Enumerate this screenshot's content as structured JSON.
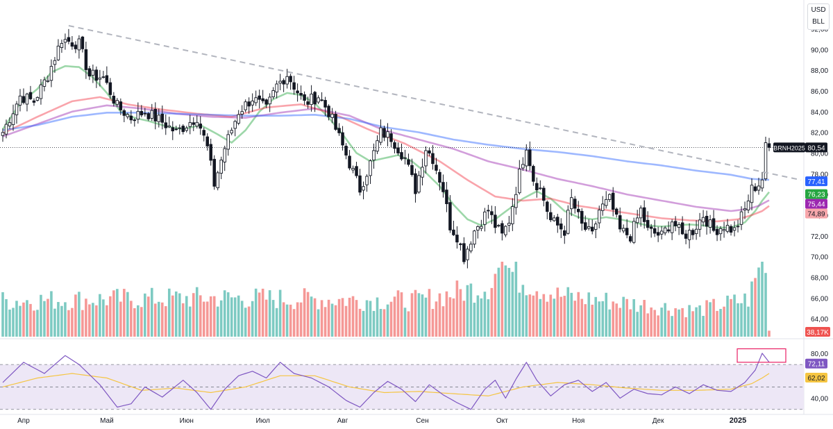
{
  "chart_data": [
    {
      "type": "candlestick",
      "panel": "price",
      "symbol": "BRNH2025",
      "currency": "USD",
      "unit": "BLL",
      "last_price_label": "80,54",
      "last_price": 80.54,
      "y_ticks": [
        "92,00",
        "90,00",
        "88,00",
        "86,00",
        "84,00",
        "82,00",
        "80,00",
        "78,00",
        "76,00",
        "74,00",
        "72,00",
        "70,00",
        "68,00",
        "66,00",
        "64,00"
      ],
      "ylim": [
        63,
        92.5
      ],
      "x_month_labels": [
        "Апр",
        "Май",
        "Июн",
        "Июл",
        "Авг",
        "Сен",
        "Окт",
        "Ноя",
        "Дек",
        "2025"
      ],
      "x_month_start_index": [
        6,
        30,
        53,
        75,
        98,
        121,
        144,
        166,
        189,
        212
      ],
      "bars_total": 222,
      "close_anchors": [
        [
          0,
          82.0
        ],
        [
          5,
          85.5
        ],
        [
          9,
          85.0
        ],
        [
          13,
          87.5
        ],
        [
          17,
          91.0
        ],
        [
          22,
          90.5
        ],
        [
          25,
          87.5
        ],
        [
          29,
          87.3
        ],
        [
          33,
          84.5
        ],
        [
          37,
          83.4
        ],
        [
          41,
          84.0
        ],
        [
          46,
          83.0
        ],
        [
          50,
          82.0
        ],
        [
          56,
          83.5
        ],
        [
          59,
          80.5
        ],
        [
          61,
          77.0
        ],
        [
          64,
          80.5
        ],
        [
          68,
          84.0
        ],
        [
          72,
          85.3
        ],
        [
          76,
          84.2
        ],
        [
          79,
          86.5
        ],
        [
          82,
          87.6
        ],
        [
          84,
          86.5
        ],
        [
          87,
          84.8
        ],
        [
          91,
          85.5
        ],
        [
          94,
          84.0
        ],
        [
          97,
          81.5
        ],
        [
          100,
          79.0
        ],
        [
          103,
          76.5
        ],
        [
          106,
          79.0
        ],
        [
          109,
          82.0
        ],
        [
          112,
          81.5
        ],
        [
          116,
          79.5
        ],
        [
          119,
          76.5
        ],
        [
          122,
          80.5
        ],
        [
          124,
          79.5
        ],
        [
          127,
          76.5
        ],
        [
          129,
          73.0
        ],
        [
          131,
          72.0
        ],
        [
          133,
          70.0
        ],
        [
          136,
          72.5
        ],
        [
          140,
          74.5
        ],
        [
          142,
          73.0
        ],
        [
          144,
          72.0
        ],
        [
          146,
          73.5
        ],
        [
          149,
          78.0
        ],
        [
          151,
          80.8
        ],
        [
          153,
          77.5
        ],
        [
          155,
          76.5
        ],
        [
          158,
          73.5
        ],
        [
          162,
          72.5
        ],
        [
          164,
          75.5
        ],
        [
          167,
          73.0
        ],
        [
          170,
          72.0
        ],
        [
          172,
          74.5
        ],
        [
          175,
          75.5
        ],
        [
          178,
          72.5
        ],
        [
          181,
          72.0
        ],
        [
          184,
          74.5
        ],
        [
          186,
          72.5
        ],
        [
          190,
          72.0
        ],
        [
          193,
          73.5
        ],
        [
          196,
          72.0
        ],
        [
          199,
          72.5
        ],
        [
          202,
          74.0
        ],
        [
          205,
          72.5
        ],
        [
          208,
          73.0
        ],
        [
          211,
          72.5
        ],
        [
          214,
          74.5
        ],
        [
          216,
          76.5
        ],
        [
          218,
          77.0
        ],
        [
          219,
          77.5
        ],
        [
          220,
          81.0
        ],
        [
          221,
          80.54
        ]
      ],
      "moving_averages": [
        {
          "label": "76,23",
          "value": 76.23,
          "color": "#26a641",
          "points": [
            [
              0,
              82.3
            ],
            [
              5,
              84.8
            ],
            [
              10,
              86.2
            ],
            [
              14,
              87.8
            ],
            [
              18,
              88.4
            ],
            [
              22,
              88.3
            ],
            [
              26,
              87.3
            ],
            [
              30,
              85.8
            ],
            [
              34,
              84.0
            ],
            [
              38,
              83.4
            ],
            [
              42,
              83.1
            ],
            [
              47,
              82.6
            ],
            [
              52,
              82.3
            ],
            [
              57,
              82.7
            ],
            [
              62,
              81.8
            ],
            [
              66,
              81.0
            ],
            [
              70,
              82.2
            ],
            [
              74,
              84.0
            ],
            [
              78,
              85.2
            ],
            [
              82,
              85.8
            ],
            [
              86,
              85.6
            ],
            [
              90,
              84.8
            ],
            [
              94,
              83.4
            ],
            [
              98,
              81.8
            ],
            [
              102,
              80.0
            ],
            [
              106,
              79.2
            ],
            [
              110,
              79.5
            ],
            [
              114,
              79.8
            ],
            [
              118,
              79.2
            ],
            [
              122,
              78.1
            ],
            [
              126,
              76.8
            ],
            [
              130,
              75.0
            ],
            [
              134,
              73.6
            ],
            [
              138,
              73.0
            ],
            [
              142,
              73.6
            ],
            [
              146,
              74.6
            ],
            [
              150,
              75.6
            ],
            [
              154,
              76.3
            ],
            [
              158,
              75.6
            ],
            [
              162,
              74.4
            ],
            [
              166,
              73.8
            ],
            [
              170,
              73.6
            ],
            [
              174,
              73.8
            ],
            [
              178,
              73.6
            ],
            [
              182,
              73.3
            ],
            [
              186,
              73.0
            ],
            [
              190,
              72.9
            ],
            [
              194,
              73.0
            ],
            [
              198,
              73.1
            ],
            [
              202,
              73.0
            ],
            [
              206,
              72.8
            ],
            [
              210,
              72.8
            ],
            [
              214,
              73.3
            ],
            [
              217,
              74.4
            ],
            [
              219,
              75.4
            ],
            [
              221,
              76.23
            ]
          ]
        },
        {
          "label": "75,44",
          "value": 75.44,
          "color": "#9c27b0",
          "points": [
            [
              0,
              81.6
            ],
            [
              10,
              82.8
            ],
            [
              20,
              84.0
            ],
            [
              30,
              84.6
            ],
            [
              40,
              84.3
            ],
            [
              50,
              83.8
            ],
            [
              60,
              83.5
            ],
            [
              70,
              83.4
            ],
            [
              80,
              83.9
            ],
            [
              90,
              84.3
            ],
            [
              100,
              83.6
            ],
            [
              110,
              82.2
            ],
            [
              120,
              81.3
            ],
            [
              130,
              80.4
            ],
            [
              140,
              79.2
            ],
            [
              150,
              78.4
            ],
            [
              160,
              77.5
            ],
            [
              170,
              76.8
            ],
            [
              180,
              76.0
            ],
            [
              190,
              75.4
            ],
            [
              200,
              74.8
            ],
            [
              210,
              74.4
            ],
            [
              215,
              74.6
            ],
            [
              218,
              74.9
            ],
            [
              221,
              75.44
            ]
          ]
        },
        {
          "label": "74,89",
          "value": 74.89,
          "color": "#f23645",
          "points": [
            [
              0,
              81.9
            ],
            [
              10,
              83.5
            ],
            [
              20,
              85.0
            ],
            [
              28,
              85.4
            ],
            [
              36,
              84.7
            ],
            [
              46,
              84.2
            ],
            [
              56,
              83.8
            ],
            [
              66,
              83.5
            ],
            [
              76,
              84.4
            ],
            [
              86,
              84.7
            ],
            [
              96,
              83.7
            ],
            [
              106,
              82.2
            ],
            [
              116,
              80.9
            ],
            [
              126,
              79.2
            ],
            [
              134,
              77.4
            ],
            [
              142,
              75.8
            ],
            [
              150,
              75.4
            ],
            [
              158,
              75.6
            ],
            [
              166,
              74.9
            ],
            [
              174,
              74.5
            ],
            [
              182,
              74.1
            ],
            [
              190,
              73.7
            ],
            [
              198,
              73.5
            ],
            [
              206,
              73.4
            ],
            [
              212,
              73.6
            ],
            [
              216,
              74.0
            ],
            [
              219,
              74.4
            ],
            [
              221,
              74.89
            ]
          ]
        },
        {
          "label": "77,41",
          "value": 77.41,
          "color": "#2962ff",
          "points": [
            [
              0,
              82.2
            ],
            [
              10,
              82.7
            ],
            [
              20,
              83.5
            ],
            [
              30,
              83.9
            ],
            [
              40,
              83.9
            ],
            [
              50,
              83.8
            ],
            [
              60,
              83.7
            ],
            [
              70,
              83.6
            ],
            [
              80,
              83.6
            ],
            [
              90,
              83.7
            ],
            [
              100,
              83.3
            ],
            [
              110,
              82.5
            ],
            [
              120,
              82.0
            ],
            [
              130,
              81.3
            ],
            [
              140,
              80.8
            ],
            [
              150,
              80.4
            ],
            [
              160,
              80.1
            ],
            [
              170,
              79.7
            ],
            [
              180,
              79.2
            ],
            [
              190,
              78.8
            ],
            [
              200,
              78.3
            ],
            [
              210,
              77.9
            ],
            [
              216,
              77.5
            ],
            [
              221,
              77.41
            ]
          ]
        }
      ],
      "trendline": {
        "style": "dashed",
        "points": [
          [
            19,
            92.3
          ],
          [
            221,
            78.2
          ]
        ]
      },
      "current_price_line": 80.54
    },
    {
      "type": "bar",
      "panel": "volume",
      "last_label": "38,17K",
      "up_color": "#26a69a",
      "down_color": "#ef5350",
      "volume_levels": [
        [
          0,
          0.48
        ],
        [
          60,
          0.52
        ],
        [
          120,
          0.48
        ],
        [
          140,
          0.68
        ],
        [
          144,
          1.0
        ],
        [
          148,
          0.8
        ],
        [
          160,
          0.55
        ],
        [
          200,
          0.35
        ],
        [
          215,
          0.5
        ],
        [
          219,
          1.0
        ],
        [
          220,
          0.85
        ],
        [
          221,
          0.08
        ]
      ]
    },
    {
      "type": "line",
      "panel": "rsi",
      "y_ticks": [
        "80,00",
        "40,00"
      ],
      "ylim": [
        28,
        88
      ],
      "rsi_label": "72,11",
      "rsi_value": 72.11,
      "signal_label": "62,02",
      "signal_value": 62.02,
      "rsi_color": "#7e57c2",
      "signal_color": "#f5c542",
      "band_fill": "#ede7f6",
      "levels": [
        70,
        50,
        30
      ],
      "rsi_points": [
        [
          0,
          54
        ],
        [
          6,
          72
        ],
        [
          12,
          62
        ],
        [
          18,
          78
        ],
        [
          22,
          70
        ],
        [
          28,
          52
        ],
        [
          33,
          32
        ],
        [
          37,
          35
        ],
        [
          41,
          50
        ],
        [
          46,
          41
        ],
        [
          52,
          56
        ],
        [
          56,
          45
        ],
        [
          60,
          30
        ],
        [
          64,
          48
        ],
        [
          68,
          60
        ],
        [
          72,
          64
        ],
        [
          76,
          58
        ],
        [
          80,
          72
        ],
        [
          84,
          62
        ],
        [
          89,
          58
        ],
        [
          94,
          50
        ],
        [
          99,
          38
        ],
        [
          103,
          32
        ],
        [
          107,
          45
        ],
        [
          111,
          55
        ],
        [
          115,
          48
        ],
        [
          119,
          37
        ],
        [
          123,
          52
        ],
        [
          127,
          43
        ],
        [
          131,
          36
        ],
        [
          135,
          30
        ],
        [
          139,
          48
        ],
        [
          142,
          56
        ],
        [
          145,
          40
        ],
        [
          148,
          57
        ],
        [
          151,
          72
        ],
        [
          154,
          56
        ],
        [
          158,
          42
        ],
        [
          162,
          52
        ],
        [
          166,
          56
        ],
        [
          170,
          46
        ],
        [
          174,
          54
        ],
        [
          178,
          40
        ],
        [
          182,
          48
        ],
        [
          186,
          44
        ],
        [
          190,
          43
        ],
        [
          194,
          50
        ],
        [
          198,
          44
        ],
        [
          202,
          52
        ],
        [
          206,
          47
        ],
        [
          210,
          46
        ],
        [
          214,
          54
        ],
        [
          217,
          65
        ],
        [
          219,
          80
        ],
        [
          220,
          76
        ],
        [
          221,
          72.11
        ]
      ],
      "signal_points": [
        [
          0,
          50
        ],
        [
          10,
          58
        ],
        [
          20,
          62
        ],
        [
          30,
          58
        ],
        [
          40,
          47
        ],
        [
          50,
          49
        ],
        [
          60,
          45
        ],
        [
          70,
          50
        ],
        [
          80,
          60
        ],
        [
          90,
          60
        ],
        [
          100,
          50
        ],
        [
          110,
          45
        ],
        [
          120,
          46
        ],
        [
          130,
          44
        ],
        [
          140,
          42
        ],
        [
          150,
          50
        ],
        [
          160,
          54
        ],
        [
          170,
          52
        ],
        [
          180,
          49
        ],
        [
          190,
          47
        ],
        [
          200,
          47
        ],
        [
          210,
          48
        ],
        [
          216,
          53
        ],
        [
          219,
          58
        ],
        [
          221,
          62.02
        ]
      ]
    }
  ]
}
